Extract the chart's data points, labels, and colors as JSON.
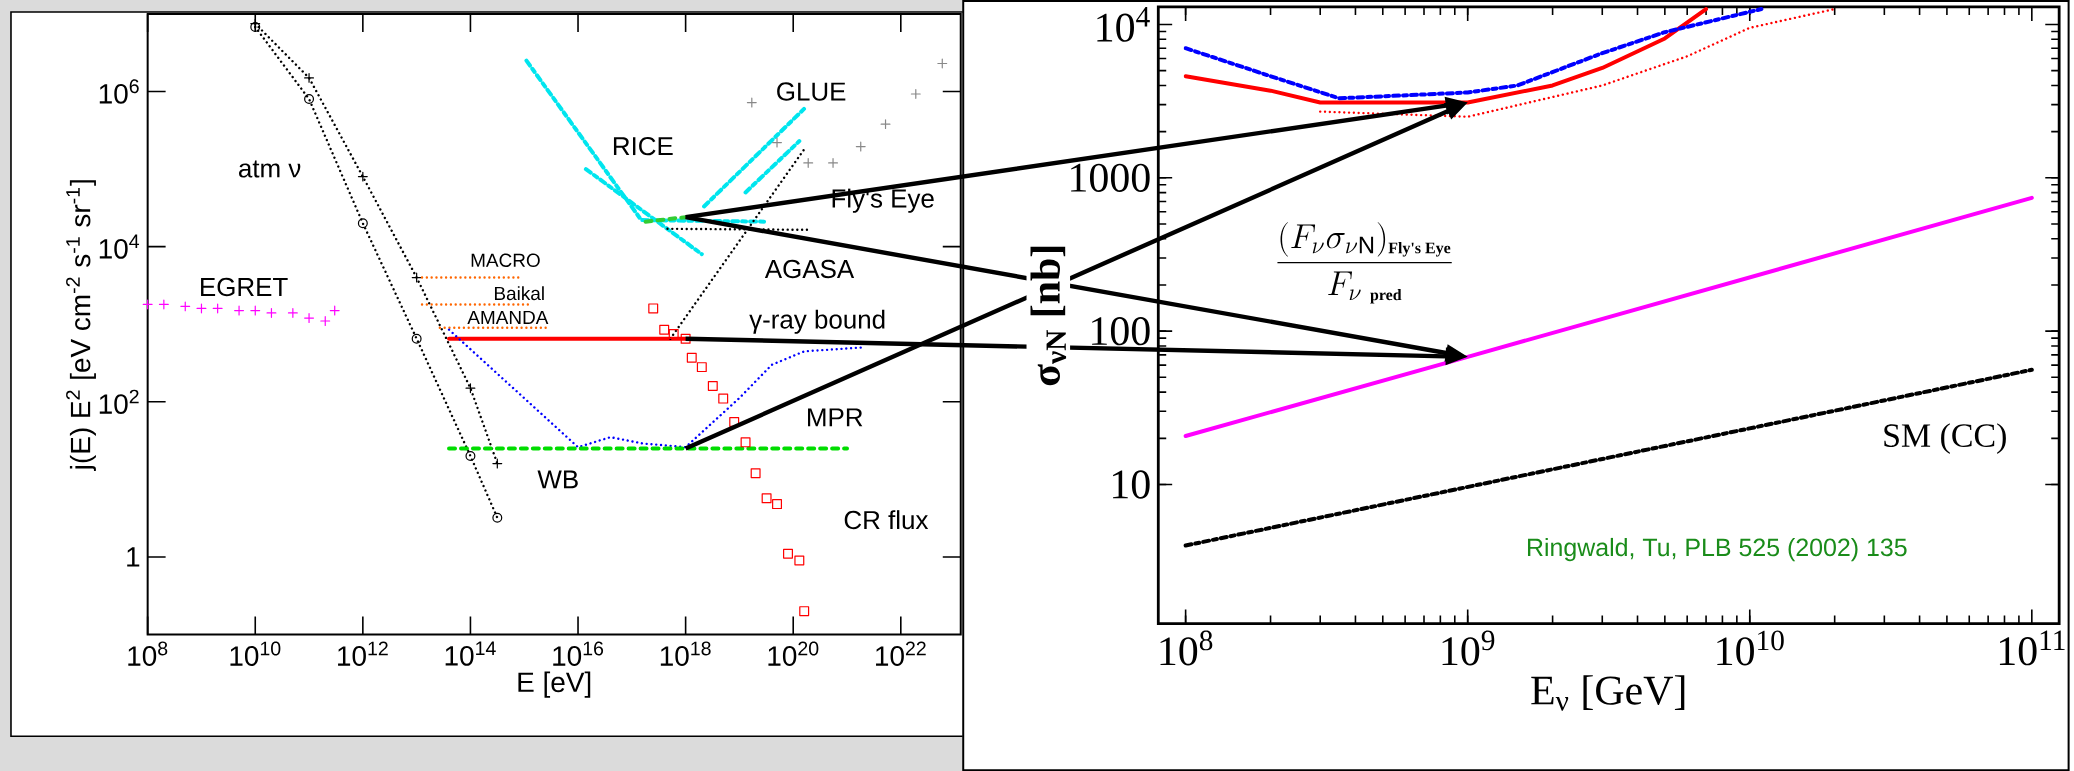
{
  "chart_data": [
    {
      "type": "line",
      "log": "xy",
      "xlabel": "E [eV]",
      "ylabel": "j(E) E$^{2}$ [eV cm$^{-2}$ s$^{-1}$ sr$^{-1}$]",
      "xlim": [
        100000000.0,
        1.3e+23
      ],
      "ylim": [
        0.1,
        10000000.0
      ],
      "xticks": [
        {
          "value": 100000000.0,
          "label": "10$^{8}$"
        },
        {
          "value": 10000000000.0,
          "label": "10$^{10}$"
        },
        {
          "value": 1000000000000.0,
          "label": "10$^{12}$"
        },
        {
          "value": 100000000000000.0,
          "label": "10$^{14}$"
        },
        {
          "value": 1e+16,
          "label": "10$^{16}$"
        },
        {
          "value": 1e+18,
          "label": "10$^{18}$"
        },
        {
          "value": 1e+20,
          "label": "10$^{20}$"
        },
        {
          "value": 1e+22,
          "label": "10$^{22}$"
        }
      ],
      "yticks": [
        1,
        {
          "value": 100,
          "label": "10$^{2}$"
        },
        {
          "value": 10000,
          "label": "10$^{4}$"
        },
        {
          "value": 1000000,
          "label": "10$^{6}$"
        }
      ],
      "series": [
        {
          "color": "#000000",
          "line_style": "dotted",
          "marker": "circle",
          "x": [
            10000000000.0,
            100000000000.0,
            1000000000000.0,
            10000000000000.0,
            100000000000000.0,
            316000000000000.0
          ],
          "values": [
            6800000.0,
            800000.0,
            20000.0,
            650,
            20,
            3.2
          ]
        },
        {
          "color": "#000000",
          "line_style": "dotted",
          "marker": "cross",
          "x": [
            10000000000.0,
            100000000000.0,
            1000000000000.0,
            10000000000000.0,
            100000000000000.0,
            316000000000000.0
          ],
          "values": [
            7500000.0,
            1500000.0,
            80000.0,
            4000,
            150,
            16
          ]
        },
        {
          "type": "scatter",
          "color": "#ff00ff",
          "marker": "cross",
          "x": [
            100000000.0,
            200000000.0,
            500000000.0,
            1000000000.0,
            2000000000.0,
            5000000000.0,
            10000000000.0,
            20000000000.0,
            50000000000.0,
            100000000000.0,
            200000000000.0,
            300000000000.0
          ],
          "values": [
            1800,
            1800,
            1700,
            1600,
            1600,
            1500,
            1500,
            1400,
            1400,
            1200,
            1100,
            1500
          ]
        },
        {
          "color": "#ff6600",
          "line_style": "dotted",
          "x": [
            12600000000000.0,
            930000000000000.0
          ],
          "values": [
            4000,
            4000
          ]
        },
        {
          "color": "#ff6600",
          "line_style": "dotted",
          "x": [
            12600000000000.0,
            1260000000000000.0
          ],
          "values": [
            1800,
            1800
          ]
        },
        {
          "color": "#ff6600",
          "line_style": "dotted",
          "x": [
            27000000000000.0,
            2900000000000000.0
          ],
          "values": [
            900,
            900
          ]
        },
        {
          "color": "#ff0000",
          "line_style": "solid",
          "x": [
            40000000000000.0,
            1e+18
          ],
          "values": [
            650,
            650
          ]
        },
        {
          "color": "#0000ff",
          "line_style": "dotted",
          "x": [
            40000000000000.0,
            1e+16,
            4e+16,
            1.6e+17,
            1e+18,
            1e+19,
            4e+19,
            1.6e+20,
            1.8e+21
          ],
          "values": [
            850,
            26,
            35,
            29,
            26,
            112,
            300,
            447,
            500
          ]
        },
        {
          "color": "#00dd00",
          "line_style": "dashed",
          "x": [
            40000000000000.0,
            1e+18,
            1e+21
          ],
          "values": [
            25,
            25,
            25
          ]
        },
        {
          "color": "#00e5ee",
          "line_style": "dashdot",
          "x": [
            1100000000000000.0,
            1.5e+17,
            3.2e+19
          ],
          "values": [
            2500000.0,
            22000.0,
            21000.0
          ]
        },
        {
          "color": "#00e5ee",
          "line_style": "dashdot",
          "x": [
            1.4e+16,
            2e+18
          ],
          "values": [
            100000.0,
            8000
          ]
        },
        {
          "color": "#00e5ee",
          "line_style": "dashdot",
          "x": [
            2.2e+18,
            1.6e+20
          ],
          "values": [
            33000.0,
            600000.0
          ]
        },
        {
          "color": "#00e5ee",
          "line_style": "dashdot",
          "x": [
            1.3e+19,
            1.3e+20
          ],
          "values": [
            50000.0,
            230000.0
          ]
        },
        {
          "color": "#000000",
          "line_style": "dotted",
          "x": [
            5.2e+17,
            1.6e+20
          ],
          "values": [
            650,
            180000.0
          ]
        },
        {
          "color": "#000000",
          "line_style": "dotted",
          "x": [
            4.6e+17,
            1.9e+20
          ],
          "values": [
            17000.0,
            16500.0
          ]
        },
        {
          "color": "#33cc33",
          "line_style": "dashed",
          "x": [
            1.8e+17,
            1e+18
          ],
          "values": [
            21000.0,
            24000.0
          ]
        },
        {
          "type": "scatter",
          "color": "#888888",
          "marker": "cross",
          "x": [
            1.7e+19,
            5e+19,
            1.9e+20,
            5.5e+20,
            1.8e+21,
            5.2e+21,
            1.9e+22,
            5.9e+22
          ],
          "values": [
            720000.0,
            220000.0,
            120000.0,
            120000.0,
            195000.0,
            380000.0,
            930000.0,
            2300000.0
          ]
        },
        {
          "type": "scatter",
          "color": "#ff0000",
          "marker": "square",
          "x": [
            2.5e+17,
            4e+17,
            6e+17,
            1e+18,
            1.3e+18,
            2e+18,
            3.2e+18,
            5e+18,
            8e+18,
            1.3e+19,
            2e+19,
            3.2e+19,
            5e+19,
            8e+19,
            1.3e+20,
            1.6e+20
          ],
          "values": [
            1600,
            850,
            750,
            650,
            370,
            280,
            160,
            110,
            55,
            30,
            12,
            5.7,
            4.8,
            1.1,
            0.9,
            0.2
          ]
        }
      ],
      "annotations": [
        "atm ν",
        "EGRET",
        "MACRO",
        "Baikal",
        "AMANDA",
        "RICE",
        "GLUE",
        "Fly's Eye",
        "AGASA",
        "γ-ray bound",
        "MPR",
        "WB",
        "CR flux"
      ]
    },
    {
      "type": "line",
      "log": "xy",
      "xlabel": "E$_{ν}$ [GeV]",
      "ylabel": "σ$_{νN}$ [nb]",
      "xlim": [
        80000000.0,
        125000000000.0
      ],
      "ylim": [
        1.24,
        13000
      ],
      "xticks": [
        {
          "value": 100000000.0,
          "label": "10$^{8}$"
        },
        {
          "value": 1000000000.0,
          "label": "10$^{9}$"
        },
        {
          "value": 10000000000.0,
          "label": "10$^{10}$"
        },
        {
          "value": 100000000000.0,
          "label": "10$^{11}$"
        }
      ],
      "yticks": [
        10,
        100,
        1000,
        {
          "value": 10000,
          "label": "10$^{4}$"
        }
      ],
      "series": [
        {
          "color": "#000000",
          "line_style": "dashdot",
          "x": [
            100000000.0,
            100000000000.0
          ],
          "values": [
            4,
            56
          ]
        },
        {
          "color": "#ff00ff",
          "line_style": "solid",
          "x": [
            100000000.0,
            1000000000.0,
            100000000000.0
          ],
          "values": [
            20.7,
            68,
            740
          ]
        },
        {
          "color": "#ff0000",
          "line_style": "solid",
          "x": [
            100000000.0,
            200000000.0,
            300000000.0,
            1000000000.0,
            2000000000.0,
            3000000000.0,
            5000000000.0,
            7000000000.0
          ],
          "values": [
            4600,
            3700,
            3100,
            3100,
            4000,
            5200,
            8100,
            12600
          ]
        },
        {
          "color": "#0000ff",
          "line_style": "dashdot",
          "x": [
            100000000.0,
            200000000.0,
            350000000.0,
            1000000000.0,
            1500000000.0,
            3000000000.0,
            5000000000.0,
            11000000000.0
          ],
          "values": [
            7000,
            4600,
            3300,
            3600,
            4000,
            6500,
            8900,
            12600
          ]
        },
        {
          "color": "#ff0000",
          "line_style": "dotted",
          "x": [
            300000000.0,
            1000000000.0,
            3000000000.0,
            6000000000.0,
            10000000000.0,
            20000000000.0
          ],
          "values": [
            2700,
            2500,
            4000,
            6200,
            9500,
            12600
          ]
        }
      ],
      "annotations": [
        "SM (CC)",
        "\\frac{(F_{\\nu}\\sigma_{\\nu \\mathrm{N}})_{\\text{\\bfseries\\footnotesize Fly's Eye}}}{F_{\\nu\\ \\text{\\bfseries\\footnotesize pred}}}",
        "Ringwald, Tu, PLB 525 (2002) 135"
      ]
    }
  ]
}
